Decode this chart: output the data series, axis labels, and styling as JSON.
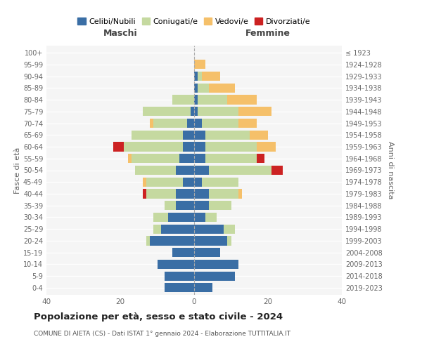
{
  "age_groups": [
    "0-4",
    "5-9",
    "10-14",
    "15-19",
    "20-24",
    "25-29",
    "30-34",
    "35-39",
    "40-44",
    "45-49",
    "50-54",
    "55-59",
    "60-64",
    "65-69",
    "70-74",
    "75-79",
    "80-84",
    "85-89",
    "90-94",
    "95-99",
    "100+"
  ],
  "birth_years": [
    "2019-2023",
    "2014-2018",
    "2009-2013",
    "2004-2008",
    "1999-2003",
    "1994-1998",
    "1989-1993",
    "1984-1988",
    "1979-1983",
    "1974-1978",
    "1969-1973",
    "1964-1968",
    "1959-1963",
    "1954-1958",
    "1949-1953",
    "1944-1948",
    "1939-1943",
    "1934-1938",
    "1929-1933",
    "1924-1928",
    "≤ 1923"
  ],
  "colors": {
    "celibi": "#3a6ea5",
    "coniugati": "#c5d9a0",
    "vedovi": "#f5c06a",
    "divorziati": "#cc2222"
  },
  "maschi": {
    "celibi": [
      8,
      8,
      10,
      6,
      12,
      9,
      7,
      5,
      5,
      3,
      5,
      4,
      3,
      3,
      2,
      1,
      0,
      0,
      0,
      0,
      0
    ],
    "coniugati": [
      0,
      0,
      0,
      0,
      1,
      2,
      4,
      3,
      8,
      10,
      11,
      13,
      16,
      14,
      9,
      13,
      6,
      0,
      0,
      0,
      0
    ],
    "vedovi": [
      0,
      0,
      0,
      0,
      0,
      0,
      0,
      0,
      0,
      1,
      0,
      1,
      0,
      0,
      1,
      0,
      0,
      0,
      0,
      0,
      0
    ],
    "divorziati": [
      0,
      0,
      0,
      0,
      0,
      0,
      0,
      0,
      1,
      0,
      0,
      0,
      3,
      0,
      0,
      0,
      0,
      0,
      0,
      0,
      0
    ]
  },
  "femmine": {
    "celibi": [
      5,
      11,
      12,
      7,
      9,
      8,
      3,
      4,
      4,
      2,
      4,
      3,
      3,
      3,
      2,
      1,
      1,
      1,
      1,
      0,
      0
    ],
    "coniugati": [
      0,
      0,
      0,
      0,
      1,
      3,
      3,
      6,
      8,
      10,
      17,
      14,
      14,
      12,
      10,
      11,
      8,
      3,
      1,
      0,
      0
    ],
    "vedovi": [
      0,
      0,
      0,
      0,
      0,
      0,
      0,
      0,
      1,
      0,
      0,
      0,
      5,
      5,
      5,
      9,
      8,
      7,
      5,
      3,
      0
    ],
    "divorziati": [
      0,
      0,
      0,
      0,
      0,
      0,
      0,
      0,
      0,
      0,
      3,
      2,
      0,
      0,
      0,
      0,
      0,
      0,
      0,
      0,
      0
    ]
  },
  "title": "Popolazione per età, sesso e stato civile - 2024",
  "subtitle": "COMUNE DI AIETA (CS) - Dati ISTAT 1° gennaio 2024 - Elaborazione TUTTITALIA.IT",
  "xlabel_maschi": "Maschi",
  "xlabel_femmine": "Femmine",
  "ylabel_left": "Fasce di età",
  "ylabel_right": "Anni di nascita",
  "xlim": 40,
  "legend_labels": [
    "Celibi/Nubili",
    "Coniugati/e",
    "Vedovi/e",
    "Divorziati/e"
  ]
}
